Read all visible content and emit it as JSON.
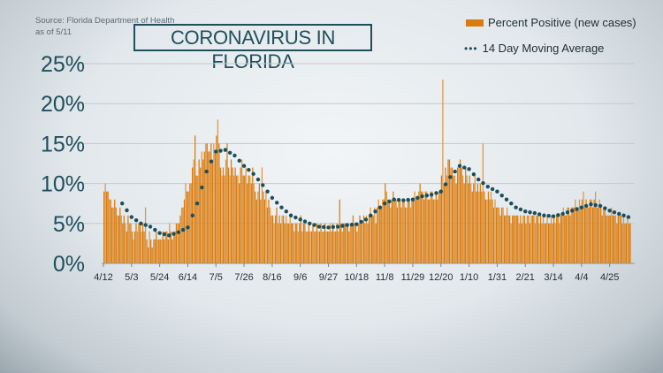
{
  "source": "Source: Florida Department of Health",
  "as_of": "as of 5/11",
  "title": "CORONAVIRUS IN FLORIDA",
  "colors": {
    "bar": "#d97b0e",
    "dots": "#1b4f5c",
    "title": "#1f4f5b"
  },
  "chart_data": {
    "type": "bar",
    "title": "CORONAVIRUS IN FLORIDA",
    "start_date": "4/12/2020",
    "ylim": [
      0,
      25
    ],
    "yticks": [
      "0%",
      "5%",
      "10%",
      "15%",
      "20%",
      "25%"
    ],
    "ytick_values": [
      0,
      5,
      10,
      15,
      20,
      25
    ],
    "xticks": [
      "4/12",
      "5/3",
      "5/24",
      "6/14",
      "7/5",
      "7/26",
      "8/16",
      "9/6",
      "9/27",
      "10/18",
      "11/8",
      "11/29",
      "12/20",
      "1/10",
      "1/31",
      "2/21",
      "3/14",
      "4/4",
      "4/25"
    ],
    "grid": true,
    "legend_placement": "top-right",
    "series": [
      {
        "name": "Percent Positive (new cases)",
        "type": "bar",
        "values": [
          9,
          10,
          9,
          9,
          8,
          8,
          7,
          7,
          8,
          7,
          6,
          6,
          7,
          6,
          5,
          6,
          5,
          4,
          6,
          5,
          5,
          4,
          3,
          4,
          5,
          4,
          5,
          5,
          4,
          5,
          4,
          7,
          3,
          2,
          4,
          3,
          2,
          3,
          3,
          4,
          3,
          3,
          3,
          3,
          4,
          3,
          4,
          4,
          3,
          5,
          4,
          3,
          4,
          4,
          5,
          5,
          5,
          6,
          7,
          7,
          8,
          10,
          9,
          9,
          10,
          10,
          12,
          13,
          16,
          11,
          11,
          13,
          12,
          14,
          13,
          14,
          15,
          15,
          14,
          14,
          15,
          13,
          15,
          14,
          16,
          18,
          15,
          12,
          11,
          12,
          11,
          13,
          15,
          12,
          11,
          13,
          12,
          11,
          12,
          11,
          11,
          10,
          12,
          13,
          11,
          11,
          12,
          10,
          11,
          11,
          10,
          12,
          10,
          9,
          8,
          9,
          10,
          8,
          12,
          9,
          8,
          9,
          7,
          8,
          7,
          6,
          6,
          5,
          6,
          7,
          5,
          6,
          5,
          6,
          6,
          5,
          6,
          5,
          5,
          6,
          5,
          5,
          4,
          5,
          5,
          4,
          5,
          6,
          4,
          5,
          5,
          4,
          4,
          5,
          4,
          4,
          5,
          4,
          4,
          5,
          4,
          4,
          5,
          4,
          4,
          5,
          4,
          4,
          4,
          5,
          4,
          5,
          4,
          4,
          5,
          4,
          8,
          5,
          4,
          5,
          5,
          5,
          5,
          4,
          5,
          5,
          6,
          5,
          5,
          4,
          5,
          6,
          5,
          5,
          6,
          5,
          6,
          5,
          6,
          7,
          6,
          6,
          7,
          5,
          7,
          8,
          7,
          7,
          8,
          8,
          10,
          9,
          8,
          8,
          7,
          8,
          9,
          8,
          8,
          7,
          8,
          8,
          7,
          8,
          8,
          7,
          7,
          8,
          8,
          7,
          8,
          8,
          9,
          8,
          8,
          9,
          10,
          9,
          9,
          8,
          9,
          9,
          8,
          8,
          9,
          9,
          8,
          8,
          9,
          8,
          9,
          9,
          11,
          23,
          10,
          12,
          11,
          13,
          13,
          12,
          12,
          11,
          11,
          10,
          12,
          12,
          13,
          12,
          11,
          10,
          12,
          11,
          10,
          11,
          10,
          9,
          10,
          11,
          9,
          10,
          9,
          10,
          9,
          15,
          9,
          8,
          8,
          9,
          8,
          9,
          8,
          7,
          8,
          7,
          7,
          7,
          6,
          7,
          7,
          6,
          6,
          7,
          6,
          6,
          5,
          6,
          6,
          6,
          6,
          6,
          5,
          6,
          5,
          6,
          6,
          5,
          6,
          6,
          5,
          6,
          6,
          6,
          5,
          6,
          6,
          5,
          6,
          5,
          6,
          5,
          5,
          6,
          5,
          5,
          6,
          5,
          6,
          5,
          6,
          6,
          5,
          6,
          6,
          7,
          6,
          6,
          7,
          7,
          6,
          7,
          7,
          7,
          8,
          7,
          7,
          8,
          7,
          8,
          9,
          7,
          8,
          7,
          7,
          8,
          8,
          7,
          8,
          9,
          7,
          7,
          8,
          7,
          6,
          7,
          7,
          6,
          6,
          6,
          6,
          7,
          6,
          6,
          6,
          5,
          6,
          6,
          6,
          5,
          6,
          5,
          5,
          6,
          5,
          5
        ]
      },
      {
        "name": "14 Day Moving Average",
        "type": "dotted-line",
        "start_date": "4/26/2020",
        "step_days": 7,
        "values": [
          7.5,
          5.8,
          5.0,
          4.6,
          3.8,
          3.5,
          3.9,
          4.5,
          7.5,
          11.5,
          14.0,
          14.2,
          13.5,
          12.2,
          11.2,
          9.8,
          8.2,
          7.0,
          6.0,
          5.5,
          5.0,
          4.6,
          4.5,
          4.6,
          4.8,
          4.9,
          5.5,
          6.5,
          7.5,
          8.0,
          7.9,
          8.0,
          8.4,
          8.6,
          9.0,
          10.8,
          12.2,
          11.8,
          10.5,
          9.6,
          9.0,
          8.0,
          7.0,
          6.5,
          6.3,
          6.0,
          5.9,
          6.2,
          6.6,
          7.0,
          7.4,
          7.2,
          6.6,
          6.2,
          5.8
        ]
      }
    ]
  }
}
